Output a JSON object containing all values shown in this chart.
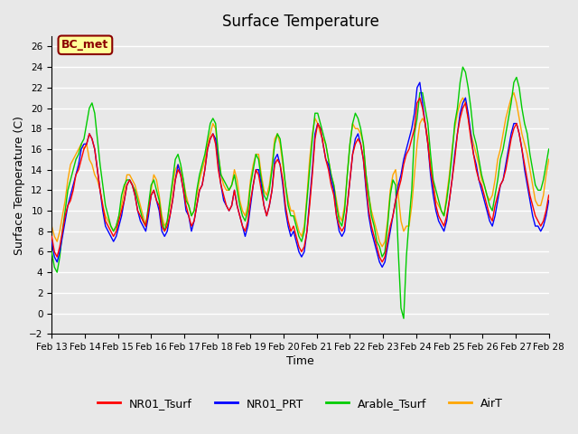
{
  "title": "Surface Temperature",
  "xlabel": "Time",
  "ylabel": "Surface Temperature (C)",
  "ylim": [
    -2,
    27
  ],
  "yticks": [
    -2,
    0,
    2,
    4,
    6,
    8,
    10,
    12,
    14,
    16,
    18,
    20,
    22,
    24,
    26
  ],
  "xtick_labels": [
    "Feb 13",
    "Feb 14",
    "Feb 15",
    "Feb 16",
    "Feb 17",
    "Feb 18",
    "Feb 19",
    "Feb 20",
    "Feb 21",
    "Feb 22",
    "Feb 23",
    "Feb 24",
    "Feb 25",
    "Feb 26",
    "Feb 27",
    "Feb 28"
  ],
  "annotation_text": "BC_met",
  "annotation_color": "#8B0000",
  "annotation_bg": "#FFFF99",
  "series_colors": [
    "#FF0000",
    "#0000FF",
    "#00CC00",
    "#FFA500"
  ],
  "series_labels": [
    "NR01_Tsurf",
    "NR01_PRT",
    "Arable_Tsurf",
    "AirT"
  ],
  "bg_color": "#E8E8E8",
  "grid_color": "#FFFFFF",
  "NR01_Tsurf": [
    7.5,
    6.0,
    5.5,
    6.5,
    8.0,
    9.5,
    10.5,
    11.0,
    12.0,
    13.5,
    14.0,
    15.0,
    16.0,
    16.5,
    17.5,
    17.0,
    16.0,
    14.0,
    12.0,
    10.5,
    9.0,
    8.5,
    8.0,
    7.5,
    8.0,
    9.0,
    10.0,
    11.0,
    12.5,
    13.0,
    12.5,
    11.5,
    10.0,
    9.5,
    9.0,
    8.5,
    10.0,
    11.5,
    12.0,
    11.0,
    10.5,
    8.5,
    8.0,
    8.5,
    9.5,
    11.0,
    13.0,
    14.0,
    13.5,
    12.0,
    10.5,
    9.5,
    8.5,
    9.0,
    10.5,
    12.0,
    12.5,
    14.0,
    16.0,
    17.0,
    17.5,
    16.5,
    14.0,
    12.5,
    11.5,
    10.5,
    10.0,
    10.5,
    12.0,
    10.5,
    9.5,
    8.5,
    8.0,
    9.0,
    11.0,
    12.5,
    14.0,
    13.5,
    12.0,
    10.5,
    9.5,
    10.5,
    12.0,
    14.5,
    15.0,
    14.5,
    13.0,
    10.5,
    9.0,
    8.0,
    8.5,
    7.5,
    6.5,
    6.0,
    6.5,
    8.0,
    10.5,
    13.5,
    17.0,
    18.5,
    18.0,
    16.5,
    15.0,
    14.0,
    12.5,
    11.5,
    9.5,
    8.5,
    8.0,
    8.5,
    10.5,
    13.0,
    15.5,
    16.5,
    17.0,
    16.5,
    15.0,
    12.5,
    10.0,
    8.5,
    7.5,
    6.5,
    5.5,
    5.0,
    5.5,
    7.0,
    8.5,
    9.5,
    11.0,
    12.0,
    13.0,
    14.5,
    15.5,
    16.0,
    17.0,
    18.0,
    20.5,
    21.0,
    20.0,
    18.5,
    16.5,
    14.0,
    12.5,
    10.5,
    9.5,
    9.0,
    8.5,
    9.5,
    11.0,
    13.0,
    15.0,
    17.5,
    19.0,
    20.0,
    20.5,
    19.0,
    17.0,
    15.5,
    14.0,
    13.0,
    12.5,
    11.5,
    10.5,
    9.5,
    9.0,
    10.5,
    11.5,
    12.5,
    13.0,
    14.0,
    15.5,
    17.0,
    18.0,
    18.5,
    17.5,
    16.0,
    14.5,
    13.0,
    11.5,
    10.5,
    9.5,
    9.0,
    8.5,
    9.0,
    10.0,
    11.5
  ],
  "NR01_PRT": [
    7.0,
    5.5,
    5.0,
    6.0,
    7.5,
    9.0,
    10.5,
    11.5,
    12.5,
    13.5,
    14.5,
    16.0,
    16.5,
    16.5,
    17.5,
    17.0,
    16.0,
    14.0,
    12.0,
    10.0,
    8.5,
    8.0,
    7.5,
    7.0,
    7.5,
    8.5,
    9.5,
    11.0,
    12.5,
    13.0,
    12.5,
    11.5,
    10.0,
    9.0,
    8.5,
    8.0,
    9.5,
    11.5,
    12.0,
    11.0,
    10.0,
    8.0,
    7.5,
    8.0,
    9.5,
    11.0,
    13.0,
    14.5,
    13.5,
    12.0,
    10.0,
    9.5,
    8.0,
    9.0,
    10.5,
    12.0,
    12.5,
    14.0,
    16.0,
    17.0,
    17.5,
    17.0,
    14.5,
    12.5,
    11.0,
    10.5,
    10.0,
    10.5,
    12.0,
    10.5,
    9.5,
    8.5,
    7.5,
    8.5,
    10.5,
    12.5,
    14.0,
    14.0,
    12.5,
    10.5,
    9.5,
    10.5,
    12.0,
    15.0,
    15.5,
    14.5,
    12.5,
    10.0,
    8.5,
    7.5,
    8.0,
    7.0,
    6.0,
    5.5,
    6.0,
    8.0,
    11.0,
    14.0,
    17.5,
    18.5,
    18.0,
    16.5,
    15.0,
    14.5,
    13.0,
    12.0,
    9.5,
    8.0,
    7.5,
    8.0,
    10.5,
    13.0,
    15.5,
    17.0,
    17.5,
    16.5,
    15.0,
    12.0,
    9.5,
    8.0,
    7.0,
    6.0,
    5.0,
    4.5,
    5.0,
    6.5,
    8.0,
    9.5,
    11.0,
    12.5,
    13.5,
    15.0,
    16.0,
    17.0,
    18.0,
    19.5,
    22.0,
    22.5,
    20.5,
    18.5,
    16.5,
    13.5,
    11.5,
    10.0,
    9.0,
    8.5,
    8.0,
    9.0,
    11.0,
    13.0,
    15.5,
    17.5,
    19.5,
    20.5,
    21.0,
    19.5,
    17.5,
    15.5,
    14.5,
    13.0,
    12.0,
    11.0,
    10.0,
    9.0,
    8.5,
    9.5,
    11.0,
    12.5,
    13.0,
    14.5,
    16.0,
    17.5,
    18.5,
    18.5,
    17.5,
    16.0,
    14.0,
    12.5,
    11.0,
    9.5,
    8.5,
    8.5,
    8.0,
    8.5,
    9.5,
    11.0
  ],
  "Arable_Tsurf": [
    6.0,
    4.5,
    4.0,
    5.5,
    8.0,
    10.0,
    12.0,
    13.0,
    14.0,
    15.0,
    15.5,
    16.5,
    17.0,
    18.5,
    20.0,
    20.5,
    19.5,
    17.0,
    14.5,
    12.5,
    10.5,
    9.5,
    8.5,
    8.0,
    8.5,
    9.5,
    11.5,
    12.5,
    13.0,
    13.0,
    12.5,
    12.0,
    11.0,
    10.0,
    9.0,
    8.5,
    10.5,
    12.5,
    13.0,
    12.0,
    11.0,
    9.0,
    8.0,
    9.0,
    11.0,
    13.0,
    15.0,
    15.5,
    14.5,
    13.0,
    11.0,
    10.5,
    9.5,
    10.0,
    12.0,
    13.5,
    14.5,
    15.5,
    17.0,
    18.5,
    19.0,
    18.5,
    15.5,
    13.5,
    13.0,
    12.5,
    12.0,
    12.5,
    13.5,
    12.0,
    10.5,
    9.5,
    9.0,
    10.0,
    12.5,
    14.0,
    15.5,
    15.0,
    13.0,
    11.5,
    11.0,
    12.0,
    14.0,
    16.5,
    17.5,
    17.0,
    15.0,
    12.5,
    10.5,
    9.5,
    9.5,
    8.5,
    7.5,
    7.0,
    8.0,
    11.0,
    14.0,
    17.0,
    19.5,
    19.5,
    18.5,
    17.5,
    16.5,
    15.0,
    13.5,
    12.5,
    10.5,
    9.0,
    8.5,
    10.0,
    13.5,
    16.5,
    18.5,
    19.5,
    19.0,
    18.0,
    16.5,
    13.5,
    11.5,
    9.5,
    8.5,
    7.0,
    6.5,
    5.5,
    6.0,
    8.5,
    11.5,
    13.0,
    12.5,
    6.0,
    0.5,
    -0.5,
    5.5,
    9.0,
    12.0,
    17.5,
    19.0,
    21.5,
    21.5,
    20.0,
    18.5,
    15.5,
    13.0,
    12.0,
    11.0,
    10.0,
    9.5,
    11.0,
    13.0,
    15.5,
    18.5,
    20.0,
    22.5,
    24.0,
    23.5,
    22.0,
    20.0,
    17.5,
    16.5,
    15.0,
    13.5,
    12.5,
    11.5,
    10.5,
    10.0,
    11.5,
    13.0,
    15.0,
    16.0,
    17.5,
    19.0,
    20.5,
    22.5,
    23.0,
    22.0,
    20.0,
    18.5,
    17.5,
    15.5,
    14.0,
    12.5,
    12.0,
    12.0,
    13.0,
    14.5,
    16.0
  ],
  "AirT": [
    8.5,
    7.5,
    7.0,
    8.0,
    9.5,
    11.0,
    13.0,
    14.5,
    15.0,
    15.5,
    16.0,
    16.5,
    16.0,
    16.5,
    15.0,
    14.5,
    13.5,
    13.0,
    12.0,
    10.5,
    9.5,
    9.0,
    8.5,
    8.0,
    8.5,
    9.5,
    10.5,
    12.0,
    13.5,
    13.5,
    13.0,
    12.5,
    11.5,
    10.5,
    9.5,
    8.5,
    10.0,
    12.0,
    13.5,
    13.0,
    11.5,
    9.5,
    8.5,
    9.0,
    10.5,
    12.5,
    14.0,
    14.5,
    14.0,
    13.0,
    11.5,
    10.5,
    9.5,
    10.0,
    11.5,
    13.0,
    14.0,
    15.0,
    16.5,
    17.5,
    18.5,
    18.0,
    15.5,
    13.5,
    12.5,
    12.0,
    12.0,
    12.5,
    14.0,
    13.0,
    11.0,
    10.0,
    9.5,
    10.5,
    13.0,
    14.5,
    15.5,
    15.5,
    13.5,
    12.0,
    11.5,
    12.5,
    14.5,
    17.0,
    17.5,
    16.5,
    14.5,
    12.5,
    11.0,
    10.0,
    10.0,
    9.0,
    8.0,
    7.5,
    8.5,
    11.5,
    15.0,
    17.5,
    19.0,
    18.5,
    17.5,
    17.0,
    16.5,
    15.0,
    13.5,
    12.5,
    11.0,
    9.5,
    9.0,
    10.5,
    13.5,
    16.5,
    18.5,
    18.0,
    18.0,
    17.5,
    16.5,
    13.5,
    11.5,
    10.0,
    9.0,
    8.0,
    7.0,
    6.5,
    7.0,
    9.0,
    12.0,
    13.5,
    14.0,
    11.5,
    9.0,
    8.0,
    8.5,
    8.5,
    10.5,
    13.5,
    16.5,
    18.5,
    19.0,
    18.5,
    17.0,
    14.5,
    12.5,
    11.0,
    10.5,
    10.0,
    9.5,
    11.5,
    13.5,
    16.0,
    18.0,
    19.5,
    20.5,
    21.0,
    20.5,
    19.0,
    17.5,
    16.5,
    15.5,
    14.5,
    13.0,
    12.5,
    11.5,
    11.0,
    11.5,
    13.0,
    15.0,
    16.0,
    17.5,
    19.0,
    20.0,
    21.0,
    21.5,
    20.5,
    19.0,
    17.5,
    16.5,
    15.5,
    14.0,
    12.5,
    11.0,
    10.5,
    10.5,
    11.5,
    13.5,
    15.0
  ]
}
